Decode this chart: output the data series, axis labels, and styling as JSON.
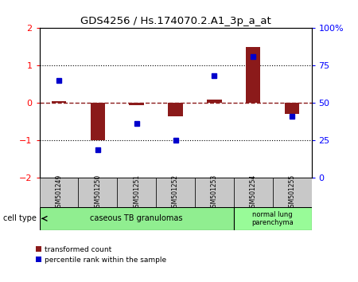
{
  "title": "GDS4256 / Hs.174070.2.A1_3p_a_at",
  "samples": [
    "GSM501249",
    "GSM501250",
    "GSM501251",
    "GSM501252",
    "GSM501253",
    "GSM501254",
    "GSM501255"
  ],
  "red_values": [
    0.05,
    -1.0,
    -0.05,
    -0.35,
    0.1,
    1.5,
    -0.3
  ],
  "blue_values": [
    0.6,
    -1.25,
    -0.55,
    -1.0,
    0.72,
    1.25,
    -0.35
  ],
  "ylim": [
    -2,
    2
  ],
  "right_ylim": [
    0,
    100
  ],
  "yticks_left": [
    -2,
    -1,
    0,
    1,
    2
  ],
  "yticks_right": [
    0,
    25,
    50,
    75,
    100
  ],
  "group1_label": "caseous TB granulomas",
  "group1_indices": [
    0,
    1,
    2,
    3,
    4
  ],
  "group2_label": "normal lung\nparenchyma",
  "group2_indices": [
    5,
    6
  ],
  "cell_type_label": "cell type",
  "legend_red": "transformed count",
  "legend_blue": "percentile rank within the sample",
  "red_color": "#8B1A1A",
  "blue_color": "#0000CC",
  "group1_color": "#90EE90",
  "group2_color": "#98FB98",
  "bar_bg_color": "#C8C8C8",
  "dotted_line_y": [
    1,
    -1
  ],
  "dashed_line_y": 0
}
